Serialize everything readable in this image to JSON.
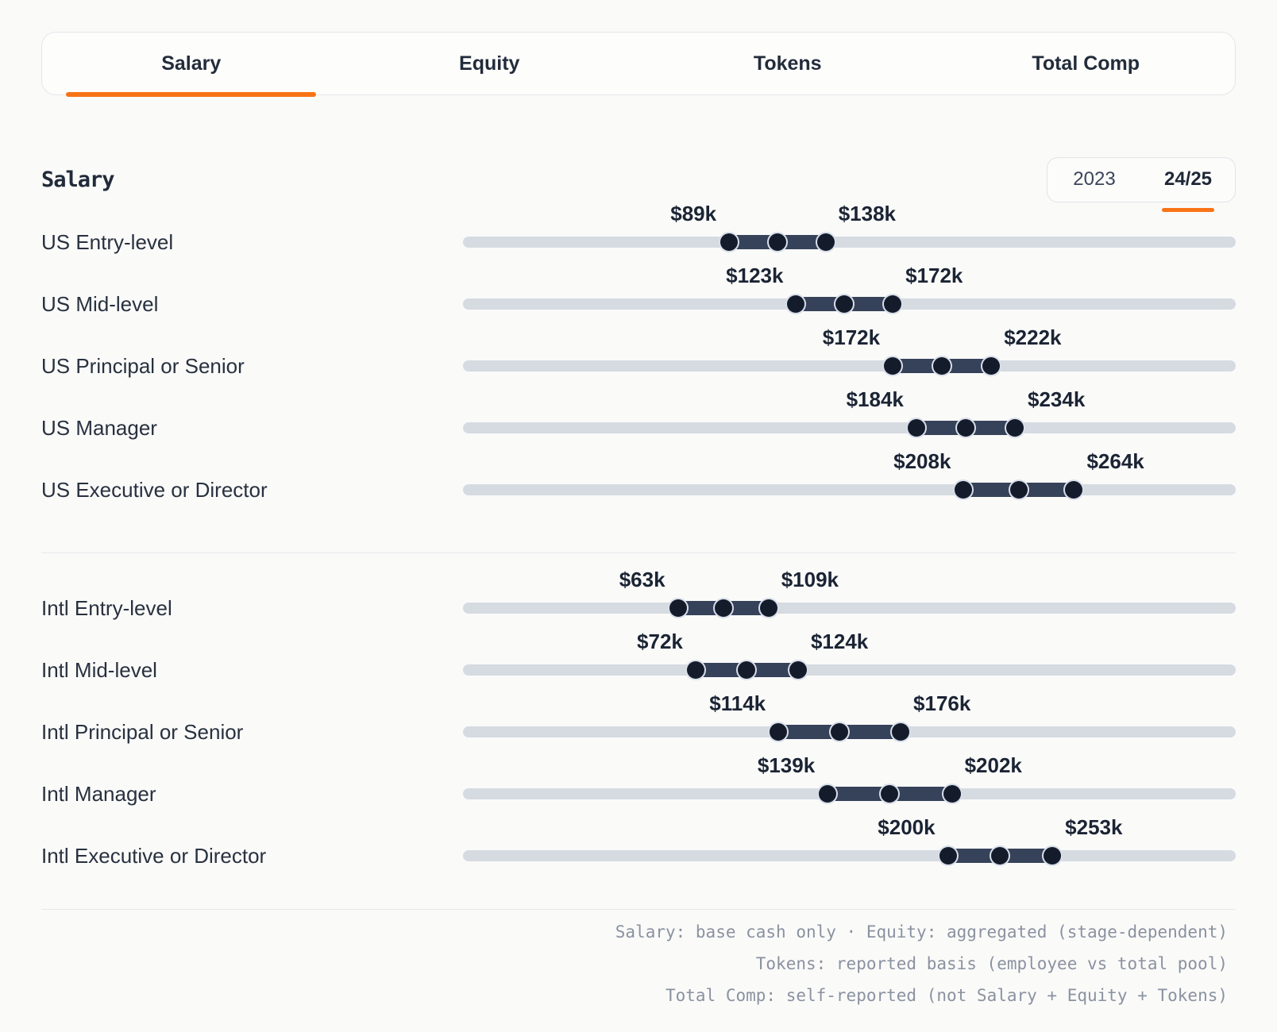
{
  "tabs": {
    "items": [
      {
        "label": "Salary",
        "active": true
      },
      {
        "label": "Equity",
        "active": false
      },
      {
        "label": "Tokens",
        "active": false
      },
      {
        "label": "Total Comp",
        "active": false
      }
    ]
  },
  "panel": {
    "heading": "Salary",
    "year_toggle": {
      "options": [
        {
          "label": "2023",
          "active": false
        },
        {
          "label": "24/25",
          "active": true
        }
      ]
    }
  },
  "chart_data": {
    "type": "range",
    "title": "Salary",
    "unit": "USD thousands (base salary)",
    "scale": {
      "min": -46,
      "max": 346
    },
    "legend_position": "none",
    "groups": [
      {
        "name": "US",
        "rows": [
          {
            "label": "US Entry-level",
            "lo": 89,
            "hi": 138,
            "lo_label": "$89k",
            "hi_label": "$138k"
          },
          {
            "label": "US Mid-level",
            "lo": 123,
            "hi": 172,
            "lo_label": "$123k",
            "hi_label": "$172k"
          },
          {
            "label": "US Principal or Senior",
            "lo": 172,
            "hi": 222,
            "lo_label": "$172k",
            "hi_label": "$222k"
          },
          {
            "label": "US Manager",
            "lo": 184,
            "hi": 234,
            "lo_label": "$184k",
            "hi_label": "$234k"
          },
          {
            "label": "US Executive or Director",
            "lo": 208,
            "hi": 264,
            "lo_label": "$208k",
            "hi_label": "$264k"
          }
        ]
      },
      {
        "name": "Intl",
        "rows": [
          {
            "label": "Intl Entry-level",
            "lo": 63,
            "hi": 109,
            "lo_label": "$63k",
            "hi_label": "$109k"
          },
          {
            "label": "Intl Mid-level",
            "lo": 72,
            "hi": 124,
            "lo_label": "$72k",
            "hi_label": "$124k"
          },
          {
            "label": "Intl Principal or Senior",
            "lo": 114,
            "hi": 176,
            "lo_label": "$114k",
            "hi_label": "$176k"
          },
          {
            "label": "Intl Manager",
            "lo": 139,
            "hi": 202,
            "lo_label": "$139k",
            "hi_label": "$202k"
          },
          {
            "label": "Intl Executive or Director",
            "lo": 200,
            "hi": 253,
            "lo_label": "$200k",
            "hi_label": "$253k"
          }
        ]
      }
    ]
  },
  "footer": {
    "lines": [
      "Salary: base cash only · Equity: aggregated (stage-dependent)",
      "Tokens: reported basis (employee vs total pool)",
      "Total Comp: self-reported (not Salary + Equity + Tokens)"
    ]
  },
  "colors": {
    "accent": "#F97316",
    "track": "#D6DAE1",
    "range_bar": "#36425A",
    "handle": "#141C2C",
    "background": "#FAFAF9"
  }
}
